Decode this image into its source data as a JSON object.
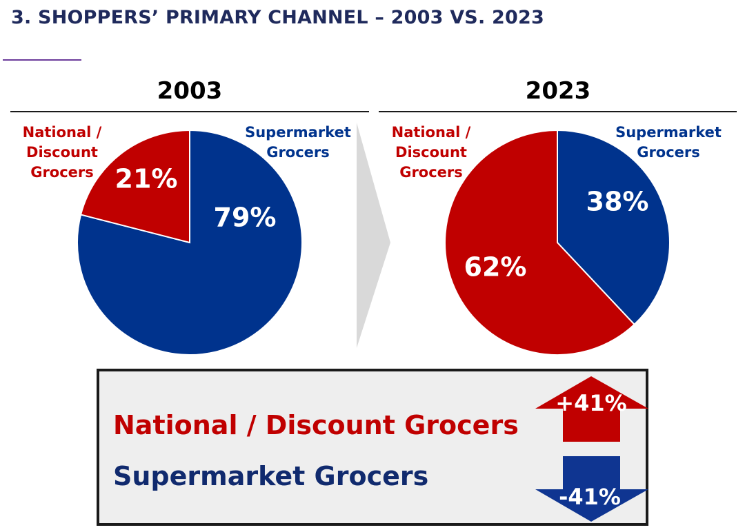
{
  "title": "3. SHOPPERS’ PRIMARY CHANNEL – 2003 VS. 2023",
  "colors": {
    "national_discount": "#c00000",
    "supermarket": "#00338d",
    "heading": "#1f2a5c",
    "arrow_gray": "#d9d9d9"
  },
  "chart_data": [
    {
      "type": "pie",
      "title": "2003",
      "slices": [
        {
          "label": "Supermarket Grocers",
          "value": 79,
          "value_label": "79%"
        },
        {
          "label": "National / Discount Grocers",
          "value": 21,
          "value_label": "21%"
        }
      ]
    },
    {
      "type": "pie",
      "title": "2023",
      "slices": [
        {
          "label": "Supermarket Grocers",
          "value": 38,
          "value_label": "38%"
        },
        {
          "label": "National / Discount Grocers",
          "value": 62,
          "value_label": "62%"
        }
      ]
    }
  ],
  "category_labels": {
    "national_discount": [
      "National /",
      "Discount",
      "Grocers"
    ],
    "supermarket": [
      "Supermarket",
      "Grocers"
    ]
  },
  "summary": {
    "national_discount_label": "National / Discount Grocers",
    "national_discount_change": "+41%",
    "supermarket_label": "Supermarket Grocers",
    "supermarket_change": "-41%"
  }
}
